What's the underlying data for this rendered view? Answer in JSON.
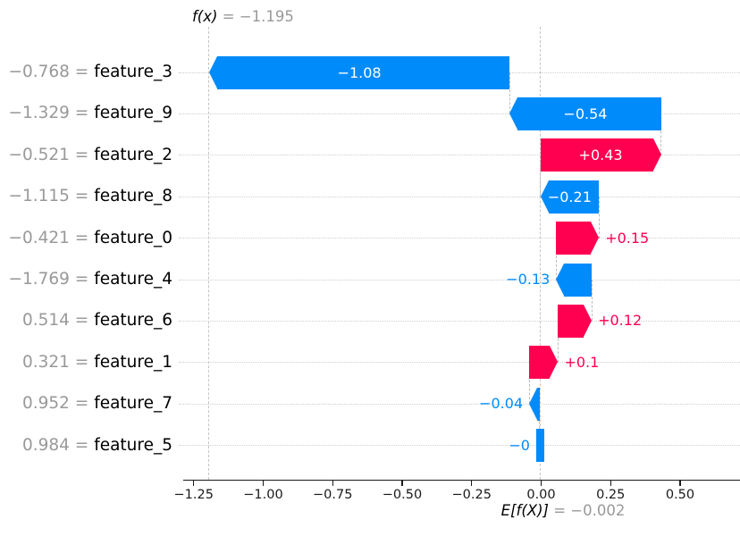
{
  "header": {
    "fx_name": "f(x)",
    "fx_eq": " = −1.195"
  },
  "footer": {
    "e_name": "E[f(X)]",
    "e_eq": " = −0.002"
  },
  "chart_data": {
    "type": "bar",
    "subtype": "shap-waterfall",
    "title": "f(x) = −1.195",
    "base_value": -0.002,
    "base_value_label": "E[f(X)] = −0.002",
    "fx_value": -1.195,
    "fx_value_label": "f(x) = −1.195",
    "xlabel": "",
    "ylabel": "",
    "xlim": [
      -1.303,
      0.716
    ],
    "grid": "horizontal-dotted",
    "equals_separator": " = ",
    "colors": {
      "positive": "#ff0051",
      "negative": "#008bfb",
      "muted_text": "#999999",
      "gridline": "#cfcfcf",
      "refline": "#c4c4c4"
    },
    "x_ticks": [
      {
        "value": -1.25,
        "label": "−1.25"
      },
      {
        "value": -1.0,
        "label": "−1.00"
      },
      {
        "value": -0.75,
        "label": "−0.75"
      },
      {
        "value": -0.5,
        "label": "−0.50"
      },
      {
        "value": -0.25,
        "label": "−0.25"
      },
      {
        "value": 0.0,
        "label": "0.00"
      },
      {
        "value": 0.25,
        "label": "0.25"
      },
      {
        "value": 0.5,
        "label": "0.50"
      }
    ],
    "rows": [
      {
        "feature": "feature_3",
        "value_label": "−0.768",
        "shap_value": -1.082,
        "shap_label": "−1.08",
        "start": -0.113,
        "end": -1.195,
        "direction": "negative",
        "label_placement": "inside",
        "has_head": true
      },
      {
        "feature": "feature_9",
        "value_label": "−1.329",
        "shap_value": -0.544,
        "shap_label": "−0.54",
        "start": 0.431,
        "end": -0.113,
        "direction": "negative",
        "label_placement": "inside",
        "has_head": true
      },
      {
        "feature": "feature_2",
        "value_label": "−0.521",
        "shap_value": 0.434,
        "shap_label": "+0.43",
        "start": -0.003,
        "end": 0.431,
        "direction": "positive",
        "label_placement": "inside",
        "has_head": true
      },
      {
        "feature": "feature_8",
        "value_label": "−1.115",
        "shap_value": -0.211,
        "shap_label": "−0.21",
        "start": 0.208,
        "end": -0.003,
        "direction": "negative",
        "label_placement": "inside",
        "has_head": true
      },
      {
        "feature": "feature_0",
        "value_label": "−0.421",
        "shap_value": 0.154,
        "shap_label": "+0.15",
        "start": 0.054,
        "end": 0.208,
        "direction": "positive",
        "label_placement": "outside",
        "has_head": true
      },
      {
        "feature": "feature_4",
        "value_label": "−1.769",
        "shap_value": -0.128,
        "shap_label": "−0.13",
        "start": 0.182,
        "end": 0.054,
        "direction": "negative",
        "label_placement": "outside",
        "has_head": true
      },
      {
        "feature": "feature_6",
        "value_label": "0.514",
        "shap_value": 0.121,
        "shap_label": "+0.12",
        "start": 0.061,
        "end": 0.182,
        "direction": "positive",
        "label_placement": "outside",
        "has_head": true
      },
      {
        "feature": "feature_1",
        "value_label": "0.321",
        "shap_value": 0.104,
        "shap_label": "+0.1",
        "start": -0.043,
        "end": 0.061,
        "direction": "positive",
        "label_placement": "outside",
        "has_head": true
      },
      {
        "feature": "feature_7",
        "value_label": "0.952",
        "shap_value": -0.038,
        "shap_label": "−0.04",
        "start": -0.005,
        "end": -0.043,
        "direction": "negative",
        "label_placement": "outside",
        "has_head": true
      },
      {
        "feature": "feature_5",
        "value_label": "0.984",
        "shap_value": -0.003,
        "shap_label": "−0",
        "start": -0.002,
        "end": -0.005,
        "direction": "negative",
        "label_placement": "outside",
        "has_head": false
      }
    ]
  }
}
